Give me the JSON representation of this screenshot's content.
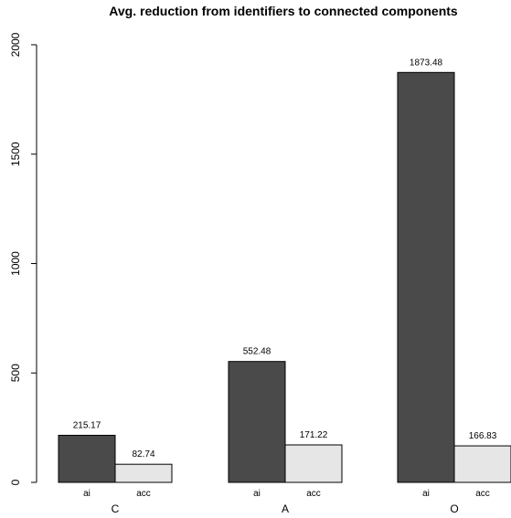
{
  "chart_data": {
    "type": "bar",
    "title": "Avg. reduction from identifiers to connected components",
    "xlabel": "",
    "ylabel": "",
    "ylim": [
      0,
      2000
    ],
    "yticks": [
      0,
      500,
      1000,
      1500,
      2000
    ],
    "grid": false,
    "groups": [
      {
        "label": "C",
        "bars": [
          {
            "label": "ai",
            "value": 215.17,
            "value_label": "215.17"
          },
          {
            "label": "acc",
            "value": 82.74,
            "value_label": "82.74"
          }
        ]
      },
      {
        "label": "A",
        "bars": [
          {
            "label": "ai",
            "value": 552.48,
            "value_label": "552.48"
          },
          {
            "label": "acc",
            "value": 171.22,
            "value_label": "171.22"
          }
        ]
      },
      {
        "label": "O",
        "bars": [
          {
            "label": "ai",
            "value": 1873.48,
            "value_label": "1873.48"
          },
          {
            "label": "acc",
            "value": 166.83,
            "value_label": "166.83"
          }
        ]
      }
    ],
    "colors": {
      "ai": "#4a4a4a",
      "acc": "#e6e6e6",
      "outline": "#000000"
    }
  }
}
